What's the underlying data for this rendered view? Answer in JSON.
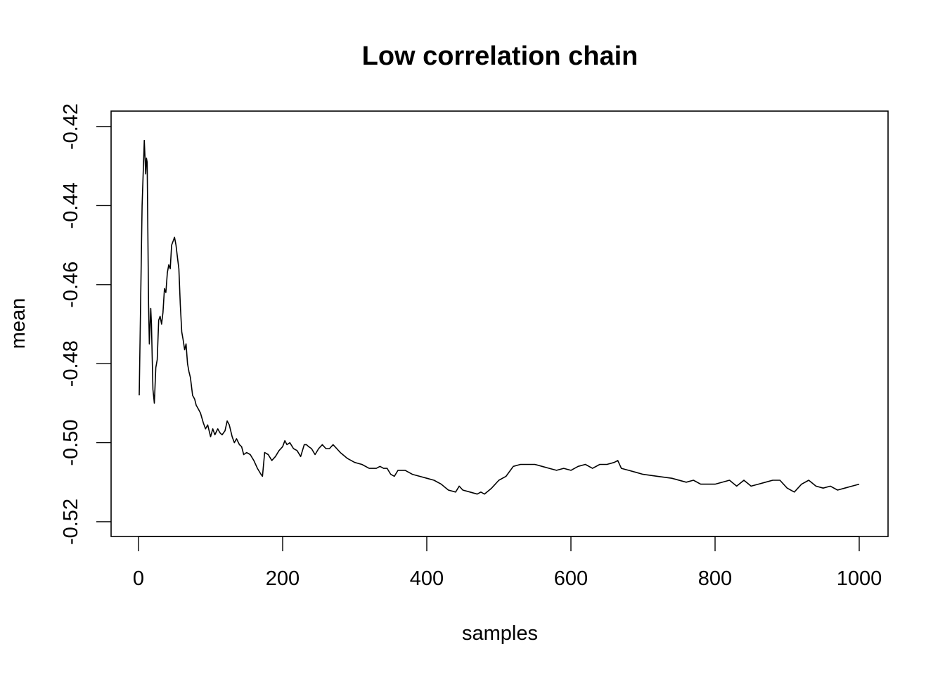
{
  "chart_data": {
    "type": "line",
    "title": "Low correlation chain",
    "xlabel": "samples",
    "ylabel": "mean",
    "xlim": [
      1,
      1000
    ],
    "ylim": [
      -0.524,
      -0.416
    ],
    "x_ticks": [
      0,
      200,
      400,
      600,
      800,
      1000
    ],
    "y_ticks": [
      -0.52,
      -0.5,
      -0.48,
      -0.46,
      -0.44,
      -0.42
    ],
    "x_tick_labels": [
      "0",
      "200",
      "400",
      "600",
      "800",
      "1000"
    ],
    "y_tick_labels": [
      "-0.52",
      "-0.50",
      "-0.48",
      "-0.46",
      "-0.44",
      "-0.42"
    ],
    "grid": false,
    "legend": "none",
    "line_color": "#000000",
    "series": [
      {
        "x": [
          1,
          5,
          8,
          10,
          11,
          12,
          14,
          15,
          17,
          18,
          20,
          22,
          24,
          26,
          28,
          30,
          32,
          34,
          36,
          38,
          40,
          42,
          44,
          46,
          48,
          50,
          52,
          54,
          56,
          58,
          60,
          62,
          64,
          66,
          68,
          70,
          72,
          75,
          78,
          80,
          83,
          86,
          90,
          93,
          96,
          100,
          103,
          106,
          110,
          113,
          116,
          120,
          123,
          126,
          130,
          133,
          136,
          140,
          143,
          146,
          150,
          155,
          160,
          165,
          170,
          172,
          175,
          180,
          185,
          190,
          195,
          200,
          203,
          206,
          210,
          215,
          220,
          225,
          230,
          233,
          236,
          240,
          245,
          250,
          255,
          260,
          265,
          270,
          275,
          280,
          290,
          300,
          310,
          320,
          330,
          335,
          340,
          345,
          350,
          355,
          360,
          370,
          380,
          390,
          400,
          410,
          420,
          430,
          440,
          445,
          450,
          460,
          470,
          475,
          480,
          490,
          500,
          510,
          520,
          530,
          540,
          550,
          560,
          570,
          580,
          590,
          600,
          610,
          620,
          630,
          640,
          650,
          660,
          665,
          670,
          680,
          690,
          700,
          720,
          740,
          760,
          770,
          780,
          800,
          820,
          830,
          840,
          850,
          860,
          870,
          880,
          890,
          900,
          910,
          920,
          930,
          940,
          950,
          960,
          970,
          980,
          990,
          1000
        ],
        "values": [
          -0.488,
          -0.44,
          -0.4235,
          -0.432,
          -0.428,
          -0.429,
          -0.465,
          -0.475,
          -0.466,
          -0.47,
          -0.4865,
          -0.49,
          -0.481,
          -0.479,
          -0.469,
          -0.468,
          -0.47,
          -0.467,
          -0.461,
          -0.462,
          -0.457,
          -0.455,
          -0.456,
          -0.45,
          -0.449,
          -0.448,
          -0.45,
          -0.453,
          -0.456,
          -0.465,
          -0.472,
          -0.474,
          -0.4765,
          -0.475,
          -0.48,
          -0.482,
          -0.4835,
          -0.488,
          -0.489,
          -0.4905,
          -0.4915,
          -0.4925,
          -0.495,
          -0.4965,
          -0.4955,
          -0.4985,
          -0.4965,
          -0.498,
          -0.4965,
          -0.4975,
          -0.498,
          -0.497,
          -0.4945,
          -0.4955,
          -0.4985,
          -0.5,
          -0.499,
          -0.5005,
          -0.501,
          -0.503,
          -0.5025,
          -0.503,
          -0.5045,
          -0.5065,
          -0.508,
          -0.5085,
          -0.5025,
          -0.503,
          -0.5045,
          -0.5035,
          -0.502,
          -0.501,
          -0.4995,
          -0.5005,
          -0.5,
          -0.5015,
          -0.502,
          -0.5035,
          -0.5005,
          -0.5005,
          -0.501,
          -0.5015,
          -0.503,
          -0.5015,
          -0.5005,
          -0.5015,
          -0.5015,
          -0.5005,
          -0.5015,
          -0.5025,
          -0.504,
          -0.505,
          -0.5055,
          -0.5065,
          -0.5065,
          -0.506,
          -0.5065,
          -0.5065,
          -0.508,
          -0.5085,
          -0.507,
          -0.507,
          -0.508,
          -0.5085,
          -0.509,
          -0.5095,
          -0.5105,
          -0.512,
          -0.5125,
          -0.511,
          -0.512,
          -0.5125,
          -0.513,
          -0.5125,
          -0.513,
          -0.5115,
          -0.5095,
          -0.5085,
          -0.506,
          -0.5055,
          -0.5055,
          -0.5055,
          -0.506,
          -0.5065,
          -0.507,
          -0.5065,
          -0.507,
          -0.506,
          -0.5055,
          -0.5065,
          -0.5055,
          -0.5055,
          -0.505,
          -0.5045,
          -0.5065,
          -0.507,
          -0.5075,
          -0.508,
          -0.5085,
          -0.509,
          -0.51,
          -0.5095,
          -0.5105,
          -0.5105,
          -0.5095,
          -0.511,
          -0.5095,
          -0.511,
          -0.5105,
          -0.51,
          -0.5095,
          -0.5095,
          -0.5115,
          -0.5125,
          -0.5105,
          -0.5095,
          -0.511,
          -0.5115,
          -0.511,
          -0.512,
          -0.5115,
          -0.511,
          -0.5105
        ]
      }
    ]
  }
}
